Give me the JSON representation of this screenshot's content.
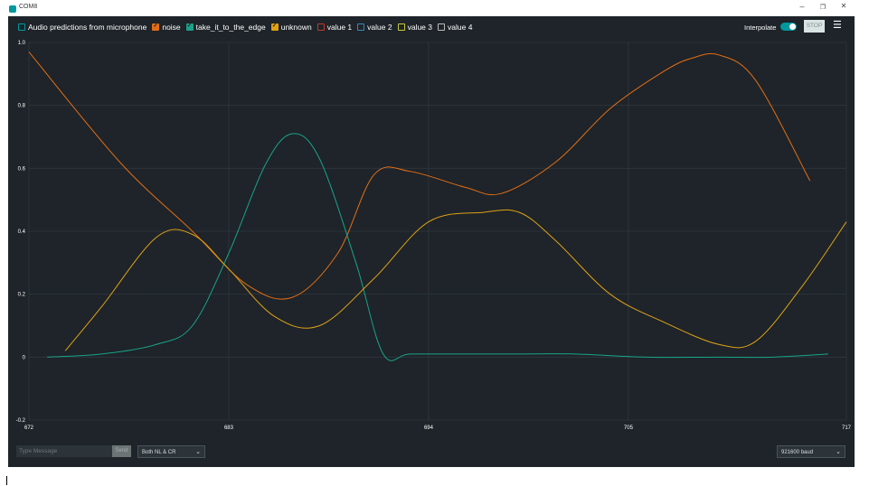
{
  "window": {
    "title": "COM8",
    "minimize": "–",
    "restore": "❐",
    "close": "✕"
  },
  "legend": [
    {
      "label": "Audio predictions from microphone",
      "checked": false,
      "color": "#00979d"
    },
    {
      "label": "noise",
      "checked": true,
      "color": "#e26d16"
    },
    {
      "label": "take_it_to_the_edge",
      "checked": true,
      "color": "#1aa389"
    },
    {
      "label": "unknown",
      "checked": true,
      "color": "#e0a117"
    },
    {
      "label": "value 1",
      "checked": false,
      "color": "#c0392b"
    },
    {
      "label": "value 2",
      "checked": false,
      "color": "#3d87b8"
    },
    {
      "label": "value 3",
      "checked": false,
      "color": "#c9c93a"
    },
    {
      "label": "value 4",
      "checked": false,
      "color": "#bbbbbb"
    }
  ],
  "controls": {
    "interpolate_label": "Interpolate",
    "interpolate_on": true,
    "stop_label": "STOP",
    "menu_icon": "list-settings-icon"
  },
  "footer": {
    "message_placeholder": "Type Message",
    "send_label": "Send",
    "line_ending": "Both NL & CR",
    "baud": "921600 baud"
  },
  "chart_data": {
    "type": "line",
    "xlim": [
      672,
      717
    ],
    "ylim": [
      -0.2,
      1.0
    ],
    "x_ticks": [
      "672",
      "683",
      "694",
      "705",
      "717"
    ],
    "y_ticks": [
      "1.0",
      "0.8",
      "0.6",
      "0.4",
      "0.2",
      "0",
      "-0.2"
    ],
    "grid": true,
    "series": [
      {
        "name": "noise",
        "color": "#e26d16",
        "x": [
          672,
          677,
          681,
          684,
          686.5,
          689,
          691,
          693,
          696,
          698,
          701,
          704,
          707,
          708.5,
          710,
          712,
          715
        ],
        "y": [
          0.97,
          0.62,
          0.4,
          0.23,
          0.19,
          0.33,
          0.58,
          0.59,
          0.54,
          0.52,
          0.62,
          0.79,
          0.91,
          0.95,
          0.96,
          0.88,
          0.56
        ]
      },
      {
        "name": "take_it_to_the_edge",
        "color": "#1aa389",
        "x": [
          673,
          676,
          679,
          681,
          683,
          685,
          686.5,
          688,
          690,
          691.5,
          693,
          696,
          699,
          702,
          706,
          710,
          713,
          716
        ],
        "y": [
          0.0,
          0.01,
          0.04,
          0.1,
          0.33,
          0.61,
          0.71,
          0.63,
          0.3,
          0.01,
          0.01,
          0.01,
          0.01,
          0.01,
          0.0,
          0.0,
          0.0,
          0.01
        ]
      },
      {
        "name": "unknown",
        "color": "#e0a117",
        "x": [
          674,
          676,
          679,
          681,
          683,
          685.5,
          688,
          691,
          694,
          697,
          699,
          701,
          704,
          707,
          710,
          712,
          714.5,
          717
        ],
        "y": [
          0.02,
          0.16,
          0.38,
          0.39,
          0.28,
          0.13,
          0.1,
          0.25,
          0.43,
          0.46,
          0.46,
          0.37,
          0.2,
          0.11,
          0.04,
          0.05,
          0.22,
          0.43
        ]
      }
    ]
  }
}
